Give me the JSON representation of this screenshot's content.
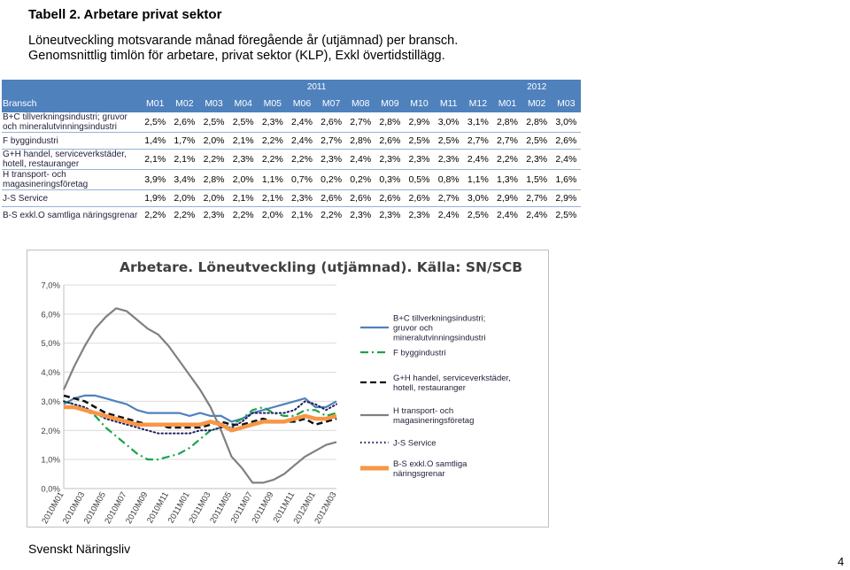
{
  "title": "Tabell 2. Arbetare privat sektor",
  "subtitle1": "Löneutveckling motsvarande månad föregående år (utjämnad) per bransch.",
  "subtitle2": "Genomsnittlig timlön för arbetare, privat sektor (KLP), Exkl övertidstillägg.",
  "table": {
    "year1": "2011",
    "year2": "2012",
    "header_label": "Bransch",
    "months": [
      "M01",
      "M02",
      "M03",
      "M04",
      "M05",
      "M06",
      "M07",
      "M08",
      "M09",
      "M10",
      "M11",
      "M12",
      "M01",
      "M02",
      "M03"
    ],
    "rows": [
      {
        "label": "B+C tillverkningsindustri; gruvor och mineralutvinningsindustri",
        "values": [
          "2,5%",
          "2,6%",
          "2,5%",
          "2,5%",
          "2,3%",
          "2,4%",
          "2,6%",
          "2,7%",
          "2,8%",
          "2,9%",
          "3,0%",
          "3,1%",
          "2,8%",
          "2,8%",
          "3,0%"
        ]
      },
      {
        "label": "F byggindustri",
        "values": [
          "1,4%",
          "1,7%",
          "2,0%",
          "2,1%",
          "2,2%",
          "2,4%",
          "2,7%",
          "2,8%",
          "2,6%",
          "2,5%",
          "2,5%",
          "2,7%",
          "2,7%",
          "2,5%",
          "2,6%"
        ]
      },
      {
        "label": "G+H handel, serviceverkstäder, hotell, restauranger",
        "values": [
          "2,1%",
          "2,1%",
          "2,2%",
          "2,3%",
          "2,2%",
          "2,2%",
          "2,3%",
          "2,4%",
          "2,3%",
          "2,3%",
          "2,3%",
          "2,4%",
          "2,2%",
          "2,3%",
          "2,4%"
        ]
      },
      {
        "label": "H transport- och magasineringsföretag",
        "values": [
          "3,9%",
          "3,4%",
          "2,8%",
          "2,0%",
          "1,1%",
          "0,7%",
          "0,2%",
          "0,2%",
          "0,3%",
          "0,5%",
          "0,8%",
          "1,1%",
          "1,3%",
          "1,5%",
          "1,6%"
        ]
      },
      {
        "label": "J-S Service",
        "values": [
          "1,9%",
          "2,0%",
          "2,0%",
          "2,1%",
          "2,1%",
          "2,3%",
          "2,6%",
          "2,6%",
          "2,6%",
          "2,6%",
          "2,7%",
          "3,0%",
          "2,9%",
          "2,7%",
          "2,9%"
        ]
      },
      {
        "label": "B-S exkl.O samtliga näringsgrenar",
        "values": [
          "2,2%",
          "2,2%",
          "2,3%",
          "2,2%",
          "2,0%",
          "2,1%",
          "2,2%",
          "2,3%",
          "2,3%",
          "2,3%",
          "2,4%",
          "2,5%",
          "2,4%",
          "2,4%",
          "2,5%"
        ]
      }
    ]
  },
  "chart_data": {
    "type": "line",
    "title": "Arbetare. Löneutveckling (utjämnad). Källa: SN/SCB",
    "x": [
      "2010M01",
      "2010M02",
      "2010M03",
      "2010M04",
      "2010M05",
      "2010M06",
      "2010M07",
      "2010M08",
      "2010M09",
      "2010M10",
      "2010M11",
      "2010M12",
      "2011M01",
      "2011M02",
      "2011M03",
      "2011M04",
      "2011M05",
      "2011M06",
      "2011M07",
      "2011M08",
      "2011M09",
      "2011M10",
      "2011M11",
      "2011M12",
      "2012M01",
      "2012M02",
      "2012M03"
    ],
    "xtick_labels": [
      "2010M01",
      "2010M03",
      "2010M05",
      "2010M07",
      "2010M09",
      "2010M11",
      "2011M01",
      "2011M03",
      "2011M05",
      "2011M07",
      "2011M09",
      "2011M11",
      "2012M01",
      "2012M03"
    ],
    "ylim": [
      0,
      7
    ],
    "yticks": [
      "0,0%",
      "1,0%",
      "2,0%",
      "3,0%",
      "4,0%",
      "5,0%",
      "6,0%",
      "7,0%"
    ],
    "legend_position": "right",
    "series": [
      {
        "name": "B+C tillverkningsindustri; gruvor och mineralutvinningsindustri",
        "color": "#4f81bd",
        "style": "solid",
        "values": [
          2.9,
          3.1,
          3.2,
          3.2,
          3.1,
          3.0,
          2.9,
          2.7,
          2.6,
          2.6,
          2.6,
          2.6,
          2.5,
          2.6,
          2.5,
          2.5,
          2.3,
          2.4,
          2.6,
          2.7,
          2.8,
          2.9,
          3.0,
          3.1,
          2.8,
          2.8,
          3.0
        ]
      },
      {
        "name": "F byggindustri",
        "color": "#1aa24a",
        "style": "dashdot",
        "values": [
          3.0,
          2.9,
          2.7,
          2.5,
          2.1,
          1.8,
          1.5,
          1.2,
          1.0,
          1.0,
          1.1,
          1.2,
          1.4,
          1.7,
          2.0,
          2.1,
          2.2,
          2.4,
          2.7,
          2.8,
          2.6,
          2.5,
          2.5,
          2.7,
          2.7,
          2.5,
          2.6
        ]
      },
      {
        "name": "G+H handel, serviceverkstäder, hotell, restauranger",
        "color": "#111111",
        "style": "dash",
        "values": [
          3.2,
          3.1,
          3.0,
          2.8,
          2.6,
          2.5,
          2.4,
          2.3,
          2.2,
          2.2,
          2.1,
          2.1,
          2.1,
          2.1,
          2.2,
          2.3,
          2.2,
          2.2,
          2.3,
          2.4,
          2.3,
          2.3,
          2.3,
          2.4,
          2.2,
          2.3,
          2.4
        ]
      },
      {
        "name": "H transport- och magasineringsföretag",
        "color": "#808080",
        "style": "solid",
        "values": [
          3.4,
          4.2,
          4.9,
          5.5,
          5.9,
          6.2,
          6.1,
          5.8,
          5.5,
          5.3,
          4.9,
          4.4,
          3.9,
          3.4,
          2.8,
          2.0,
          1.1,
          0.7,
          0.2,
          0.2,
          0.3,
          0.5,
          0.8,
          1.1,
          1.3,
          1.5,
          1.6
        ]
      },
      {
        "name": "J-S Service",
        "color": "#1f1f60",
        "style": "dot",
        "values": [
          3.0,
          2.9,
          2.8,
          2.6,
          2.4,
          2.3,
          2.2,
          2.1,
          2.0,
          1.9,
          1.9,
          1.9,
          1.9,
          2.0,
          2.0,
          2.1,
          2.1,
          2.3,
          2.6,
          2.6,
          2.6,
          2.6,
          2.7,
          3.0,
          2.9,
          2.7,
          2.9
        ]
      },
      {
        "name": "B-S exkl.O samtliga näringsgrenar",
        "color": "#f79646",
        "style": "solid",
        "values": [
          2.8,
          2.8,
          2.7,
          2.6,
          2.5,
          2.4,
          2.3,
          2.2,
          2.2,
          2.2,
          2.2,
          2.2,
          2.2,
          2.2,
          2.3,
          2.2,
          2.0,
          2.1,
          2.2,
          2.3,
          2.3,
          2.3,
          2.4,
          2.5,
          2.4,
          2.4,
          2.5
        ]
      }
    ]
  },
  "footer": "Svenskt Näringsliv",
  "page_number": "4"
}
